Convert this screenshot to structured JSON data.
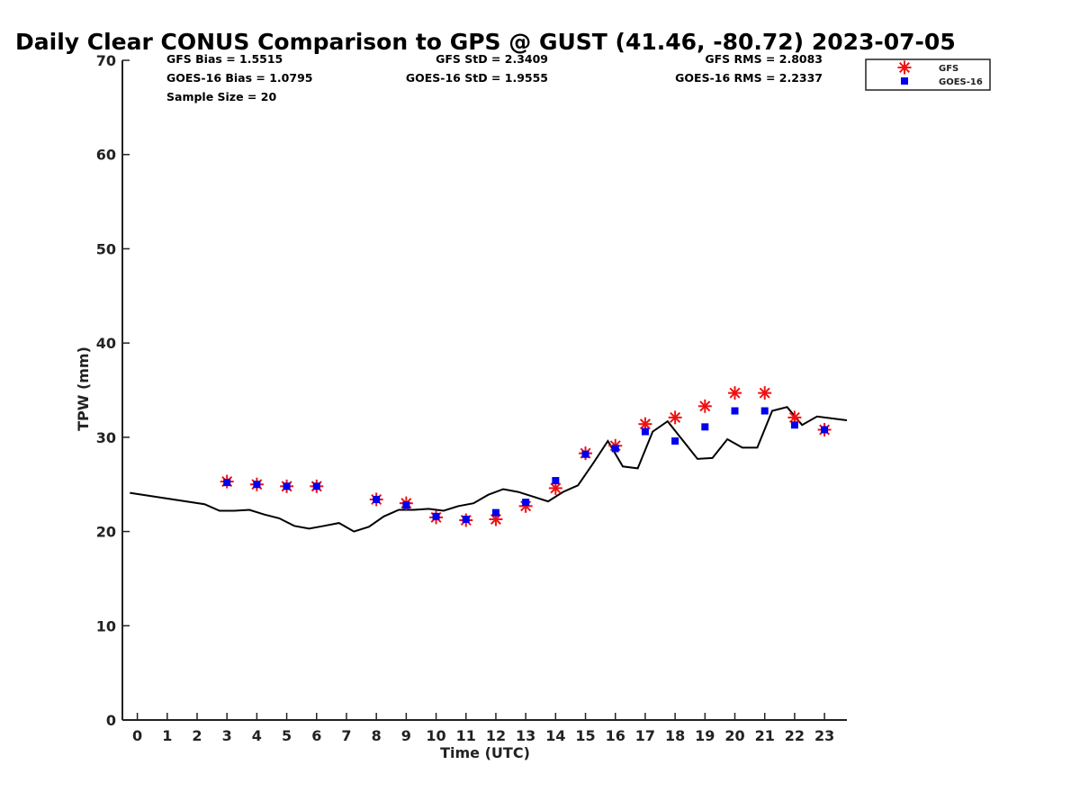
{
  "chart_data": {
    "type": "scatter",
    "title": "Daily Clear CONUS Comparison to GPS @ GUST (41.46, -80.72) 2023-07-05",
    "xlabel": "Time (UTC)",
    "ylabel": "TPW (mm)",
    "xlim": [
      -0.5,
      23.75
    ],
    "ylim": [
      0,
      70
    ],
    "xticks": [
      "0",
      "1",
      "2",
      "3",
      "4",
      "5",
      "6",
      "7",
      "8",
      "9",
      "10",
      "11",
      "12",
      "13",
      "14",
      "15",
      "16",
      "17",
      "18",
      "19",
      "20",
      "21",
      "22",
      "23"
    ],
    "yticks": [
      "0",
      "10",
      "20",
      "30",
      "40",
      "50",
      "60",
      "70"
    ],
    "grid": false,
    "legend_position": "top-right outside",
    "stats": {
      "gfs_bias": "GFS Bias = 1.5515",
      "goes_bias": "GOES-16 Bias = 1.0795",
      "sample_size": "Sample Size = 20",
      "gfs_std": "GFS StD = 2.3409",
      "goes_std": "GOES-16 StD = 1.9555",
      "gfs_rms": "GFS RMS = 2.8083",
      "goes_rms": "GOES-16 RMS = 2.2337"
    },
    "series": [
      {
        "name": "GFS",
        "marker": "asterisk",
        "color": "#ee1111",
        "x": [
          3,
          4,
          5,
          6,
          8,
          9,
          10,
          11,
          12,
          13,
          14,
          15,
          16,
          17,
          18,
          19,
          20,
          21,
          22,
          23
        ],
        "y": [
          25.3,
          25.0,
          24.8,
          24.8,
          23.4,
          23.0,
          21.5,
          21.2,
          21.3,
          22.7,
          24.6,
          28.3,
          29.1,
          31.4,
          32.1,
          33.3,
          34.7,
          34.7,
          32.1,
          30.8
        ]
      },
      {
        "name": "GOES-16",
        "marker": "square",
        "color": "#0000ee",
        "x": [
          3,
          4,
          5,
          6,
          8,
          9,
          10,
          11,
          12,
          13,
          14,
          15,
          16,
          17,
          18,
          19,
          20,
          21,
          22,
          23
        ],
        "y": [
          25.2,
          25.0,
          24.8,
          24.8,
          23.4,
          22.8,
          21.6,
          21.3,
          22.0,
          23.1,
          25.4,
          28.2,
          28.8,
          30.6,
          29.6,
          31.1,
          32.8,
          32.8,
          31.3,
          30.8
        ]
      },
      {
        "name": "GPS",
        "marker": "line",
        "color": "#000000",
        "x": [
          -0.25,
          2.25,
          2.75,
          3.25,
          3.75,
          4.25,
          4.75,
          5.25,
          5.75,
          6.25,
          6.75,
          7.25,
          7.75,
          8.25,
          8.75,
          9.25,
          9.75,
          10.25,
          10.75,
          11.25,
          11.75,
          12.25,
          12.75,
          13.25,
          13.75,
          14.25,
          14.75,
          15.25,
          15.75,
          16.25,
          16.75,
          17.25,
          17.75,
          18.25,
          18.75,
          19.25,
          19.75,
          20.25,
          20.75,
          21.25,
          21.75,
          22.25,
          22.75,
          23.75
        ],
        "y": [
          24.1,
          22.9,
          22.2,
          22.2,
          22.3,
          21.8,
          21.4,
          20.6,
          20.3,
          20.6,
          20.9,
          20.0,
          20.5,
          21.6,
          22.3,
          22.3,
          22.4,
          22.2,
          22.7,
          23.0,
          23.9,
          24.5,
          24.2,
          23.7,
          23.2,
          24.2,
          24.9,
          27.2,
          29.6,
          26.9,
          26.7,
          30.6,
          31.7,
          29.7,
          27.7,
          27.8,
          29.8,
          28.9,
          28.9,
          32.8,
          33.2,
          31.3,
          32.2,
          31.8
        ]
      }
    ]
  }
}
